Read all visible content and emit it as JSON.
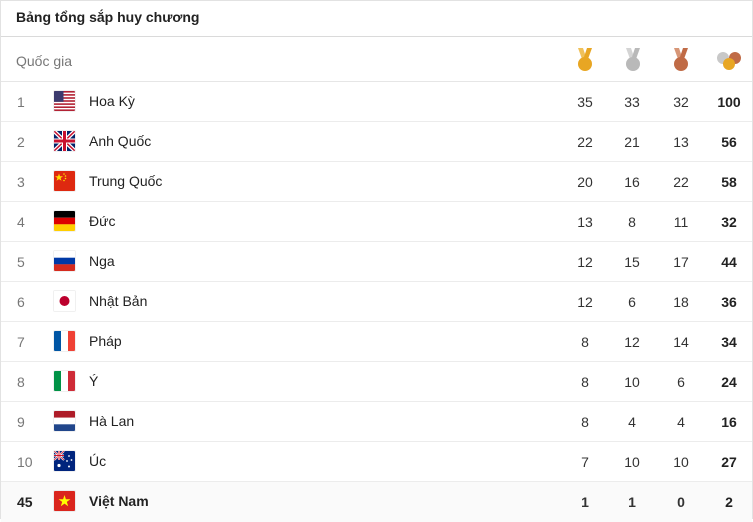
{
  "title": "Bảng tổng sắp huy chương",
  "header": {
    "country_label": "Quốc gia",
    "gold_icon": "gold-medal-icon",
    "silver_icon": "silver-medal-icon",
    "bronze_icon": "bronze-medal-icon",
    "total_icon": "all-medals-icon"
  },
  "colors": {
    "gold": "#e8a623",
    "silver": "#b9b9b9",
    "bronze": "#c06b46",
    "ribbon_gold": "#f0c15a",
    "ribbon_silver": "#d4d4d4",
    "ribbon_bronze": "#d79677"
  },
  "rows": [
    {
      "rank": "1",
      "flag": "us-flag-icon",
      "country": "Hoa Kỳ",
      "gold": "35",
      "silver": "33",
      "bronze": "32",
      "total": "100"
    },
    {
      "rank": "2",
      "flag": "uk-flag-icon",
      "country": "Anh Quốc",
      "gold": "22",
      "silver": "21",
      "bronze": "13",
      "total": "56"
    },
    {
      "rank": "3",
      "flag": "china-flag-icon",
      "country": "Trung Quốc",
      "gold": "20",
      "silver": "16",
      "bronze": "22",
      "total": "58"
    },
    {
      "rank": "4",
      "flag": "germany-flag-icon",
      "country": "Đức",
      "gold": "13",
      "silver": "8",
      "bronze": "11",
      "total": "32"
    },
    {
      "rank": "5",
      "flag": "russia-flag-icon",
      "country": "Nga",
      "gold": "12",
      "silver": "15",
      "bronze": "17",
      "total": "44"
    },
    {
      "rank": "6",
      "flag": "japan-flag-icon",
      "country": "Nhật Bản",
      "gold": "12",
      "silver": "6",
      "bronze": "18",
      "total": "36"
    },
    {
      "rank": "7",
      "flag": "france-flag-icon",
      "country": "Pháp",
      "gold": "8",
      "silver": "12",
      "bronze": "14",
      "total": "34"
    },
    {
      "rank": "8",
      "flag": "italy-flag-icon",
      "country": "Ý",
      "gold": "8",
      "silver": "10",
      "bronze": "6",
      "total": "24"
    },
    {
      "rank": "9",
      "flag": "netherlands-flag-icon",
      "country": "Hà Lan",
      "gold": "8",
      "silver": "4",
      "bronze": "4",
      "total": "16"
    },
    {
      "rank": "10",
      "flag": "australia-flag-icon",
      "country": "Úc",
      "gold": "7",
      "silver": "10",
      "bronze": "10",
      "total": "27"
    },
    {
      "rank": "45",
      "flag": "vietnam-flag-icon",
      "country": "Việt Nam",
      "gold": "1",
      "silver": "1",
      "bronze": "0",
      "total": "2"
    }
  ]
}
